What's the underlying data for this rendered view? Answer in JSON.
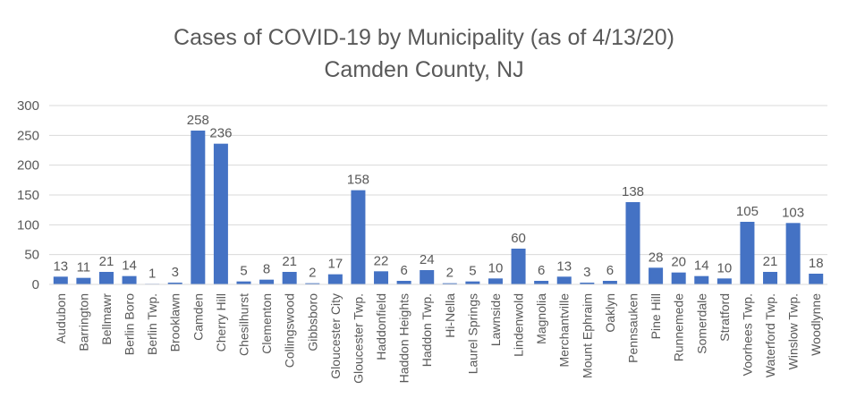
{
  "chart_data": {
    "type": "bar",
    "title": "Cases of COVID-19 by Municipality (as of 4/13/20)",
    "subtitle": "Camden County, NJ",
    "xlabel": "",
    "ylabel": "",
    "ylim": [
      0,
      300
    ],
    "yticks": [
      0,
      50,
      100,
      150,
      200,
      250,
      300
    ],
    "grid": true,
    "legend": "none",
    "bar_color": "#4472C4",
    "categories": [
      "Audubon",
      "Barrington",
      "Bellmawr",
      "Berlin Boro",
      "Berlin Twp.",
      "Brooklawn",
      "Camden",
      "Cherry Hill",
      "Chesilhurst",
      "Clementon",
      "Collingswood",
      "Gibbsboro",
      "Gloucester City",
      "Gloucester Twp.",
      "Haddonfield",
      "Haddon Heights",
      "Haddon Twp.",
      "Hi-Nella",
      "Laurel Springs",
      "Lawnside",
      "Lindenwold",
      "Magnolia",
      "Merchantville",
      "Mount Ephraim",
      "Oaklyn",
      "Pennsauken",
      "Pine Hill",
      "Runnemede",
      "Somerdale",
      "Stratford",
      "Voorhees Twp.",
      "Waterford Twp.",
      "Winslow Twp.",
      "Woodlynne"
    ],
    "values": [
      13,
      11,
      21,
      14,
      1,
      3,
      258,
      236,
      5,
      8,
      21,
      2,
      17,
      158,
      22,
      6,
      24,
      2,
      5,
      10,
      60,
      6,
      13,
      3,
      6,
      138,
      28,
      20,
      14,
      10,
      105,
      21,
      103,
      18
    ]
  }
}
